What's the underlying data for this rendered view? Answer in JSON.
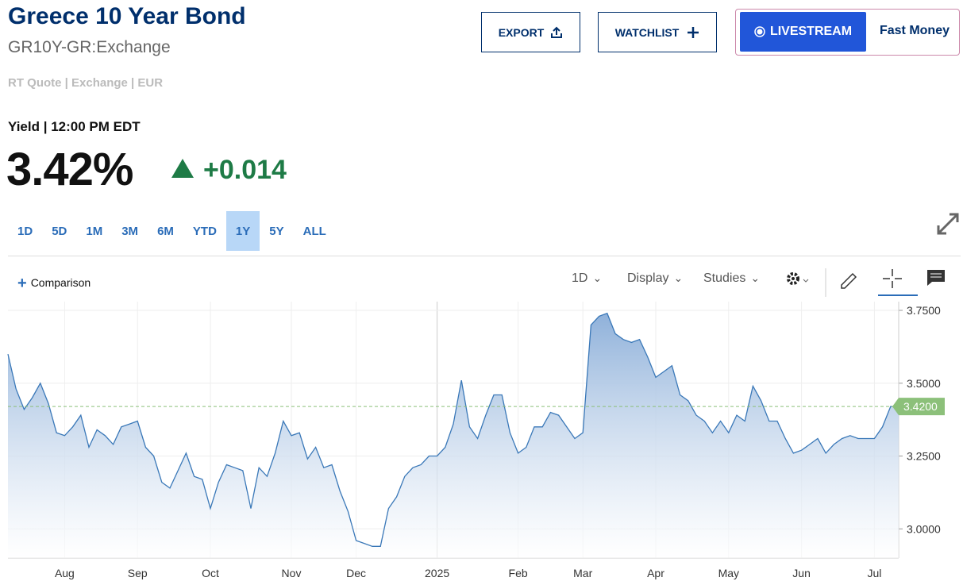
{
  "header": {
    "title": "Greece 10 Year Bond",
    "symbol": "GR10Y-GR:Exchange",
    "quote_info": "RT Quote | Exchange | EUR",
    "yield_label": "Yield | 12:00 PM EDT",
    "price": "3.42%",
    "change": "+0.014"
  },
  "buttons": {
    "export": "EXPORT",
    "watchlist": "WATCHLIST",
    "livestream": "LIVESTREAM",
    "show": "Fast Money"
  },
  "ranges": {
    "items": [
      "1D",
      "5D",
      "1M",
      "3M",
      "6M",
      "YTD",
      "1Y",
      "5Y",
      "ALL"
    ],
    "active": "1Y"
  },
  "toolbar": {
    "comparison": "Comparison",
    "interval": "1D",
    "display": "Display",
    "studies": "Studies"
  },
  "chart_data": {
    "type": "area",
    "categories": [
      null,
      null,
      null,
      null,
      null,
      null,
      null,
      "Aug",
      null,
      null,
      null,
      null,
      null,
      null,
      null,
      null,
      "Sep",
      null,
      null,
      null,
      null,
      null,
      null,
      null,
      null,
      "Oct",
      null,
      null,
      null,
      null,
      null,
      null,
      null,
      null,
      null,
      "Nov",
      null,
      null,
      null,
      null,
      null,
      null,
      null,
      "Dec",
      null,
      null,
      null,
      null,
      null,
      null,
      null,
      null,
      null,
      "2025",
      null,
      null,
      null,
      null,
      null,
      null,
      null,
      null,
      null,
      "Feb",
      null,
      null,
      null,
      null,
      null,
      null,
      null,
      "Mar",
      null,
      null,
      null,
      null,
      null,
      null,
      null,
      null,
      "Apr",
      null,
      null,
      null,
      null,
      null,
      null,
      null,
      null,
      "May",
      null,
      null,
      null,
      null,
      null,
      null,
      null,
      null,
      "Jun",
      null,
      null,
      null,
      null,
      null,
      null,
      null,
      null,
      "Jul",
      null,
      null,
      null
    ],
    "values": [
      3.6,
      3.48,
      3.41,
      3.45,
      3.5,
      3.43,
      3.33,
      3.32,
      3.35,
      3.39,
      3.28,
      3.34,
      3.32,
      3.29,
      3.35,
      3.36,
      3.37,
      3.28,
      3.25,
      3.16,
      3.14,
      3.2,
      3.26,
      3.18,
      3.17,
      3.07,
      3.16,
      3.22,
      3.21,
      3.2,
      3.07,
      3.21,
      3.18,
      3.26,
      3.37,
      3.32,
      3.33,
      3.24,
      3.28,
      3.21,
      3.22,
      3.13,
      3.06,
      2.96,
      2.95,
      2.94,
      2.94,
      3.07,
      3.11,
      3.18,
      3.21,
      3.22,
      3.25,
      3.25,
      3.28,
      3.36,
      3.51,
      3.35,
      3.31,
      3.39,
      3.46,
      3.46,
      3.33,
      3.26,
      3.28,
      3.35,
      3.35,
      3.4,
      3.39,
      3.35,
      3.31,
      3.33,
      3.7,
      3.73,
      3.74,
      3.67,
      3.65,
      3.64,
      3.65,
      3.59,
      3.52,
      3.54,
      3.56,
      3.46,
      3.44,
      3.39,
      3.37,
      3.33,
      3.37,
      3.33,
      3.39,
      3.37,
      3.49,
      3.44,
      3.37,
      3.37,
      3.31,
      3.26,
      3.27,
      3.29,
      3.31,
      3.26,
      3.29,
      3.31,
      3.32,
      3.31,
      3.31,
      3.31,
      3.35,
      3.42,
      3.42
    ],
    "color": "#3a78b8",
    "ylim": [
      2.9,
      3.78
    ],
    "yticks": [
      {
        "value": 3.0,
        "label": "3.0000"
      },
      {
        "value": 3.25,
        "label": "3.2500"
      },
      {
        "value": 3.5,
        "label": "3.5000"
      },
      {
        "value": 3.75,
        "label": "3.7500"
      }
    ],
    "last_value": {
      "value": 3.42,
      "label": "3.4200"
    },
    "grid": true
  }
}
